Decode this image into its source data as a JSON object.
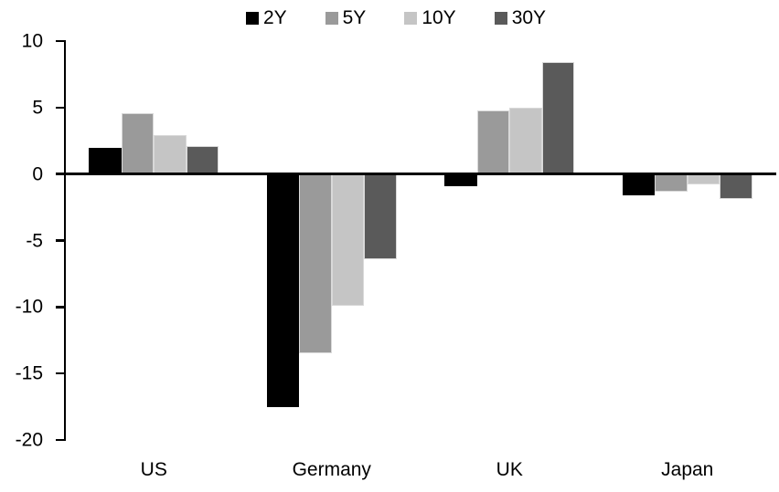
{
  "chart_data": {
    "type": "bar",
    "title": "",
    "categories": [
      "US",
      "Germany",
      "UK",
      "Japan"
    ],
    "series": [
      {
        "name": "2Y",
        "color": "#000000",
        "values": [
          2.0,
          -17.5,
          -0.9,
          -1.6
        ]
      },
      {
        "name": "5Y",
        "color": "#9a9a9a",
        "values": [
          4.6,
          -13.5,
          4.8,
          -1.3
        ]
      },
      {
        "name": "10Y",
        "color": "#c5c5c5",
        "values": [
          2.9,
          -9.9,
          5.0,
          -0.8
        ]
      },
      {
        "name": "30Y",
        "color": "#5a5a5a",
        "values": [
          2.1,
          -6.4,
          8.4,
          -1.9
        ]
      }
    ],
    "ylim": [
      -20,
      10
    ],
    "yticks": [
      10,
      5,
      0,
      -5,
      -10,
      -15,
      -20
    ],
    "legend_position": "top",
    "grid": false,
    "axis_color": "#000000",
    "background_color": "#ffffff"
  }
}
